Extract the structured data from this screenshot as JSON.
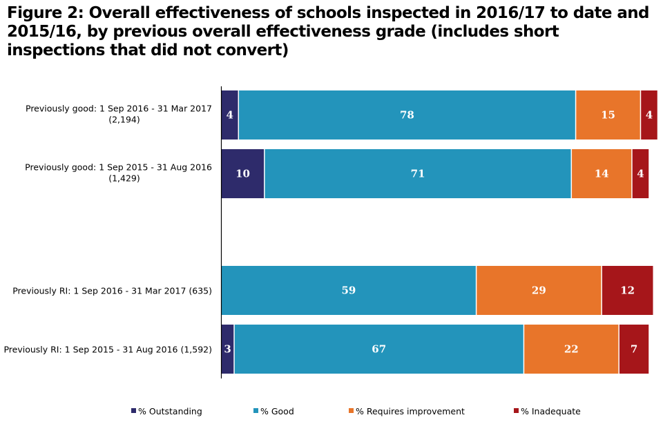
{
  "chart_data": {
    "type": "bar",
    "orientation": "horizontal",
    "stacked": true,
    "title": "Figure 2: Overall effectiveness of schools inspected in 2016/17 to date and 2015/16, by previous overall effectiveness grade (includes short inspections that did not convert)",
    "xlabel": "",
    "ylabel": "",
    "xlim": [
      0,
      100
    ],
    "grid": false,
    "legend_position": "bottom",
    "categories": [
      [
        "Previously good: 1 Sep 2016 - 31 Mar 2017",
        "(2,194)"
      ],
      [
        "Previously good: 1 Sep 2015 - 31 Aug 2016",
        "(1,429)"
      ],
      [
        "Previously RI: 1 Sep 2016 - 31 Mar 2017 (635)"
      ],
      [
        "Previously RI: 1 Sep 2015 - 31 Aug 2016 (1,592)"
      ]
    ],
    "group_gap_after": 1,
    "series": [
      {
        "name": "% Outstanding",
        "color": "#2e2b6b",
        "values": [
          4,
          10,
          0,
          3
        ]
      },
      {
        "name": "% Good",
        "color": "#2394bb",
        "values": [
          78,
          71,
          59,
          67
        ]
      },
      {
        "name": "% Requires improvement",
        "color": "#e8752a",
        "values": [
          15,
          14,
          29,
          22
        ]
      },
      {
        "name": "% Inadequate",
        "color": "#a6161a",
        "values": [
          4,
          4,
          12,
          7
        ]
      }
    ]
  }
}
